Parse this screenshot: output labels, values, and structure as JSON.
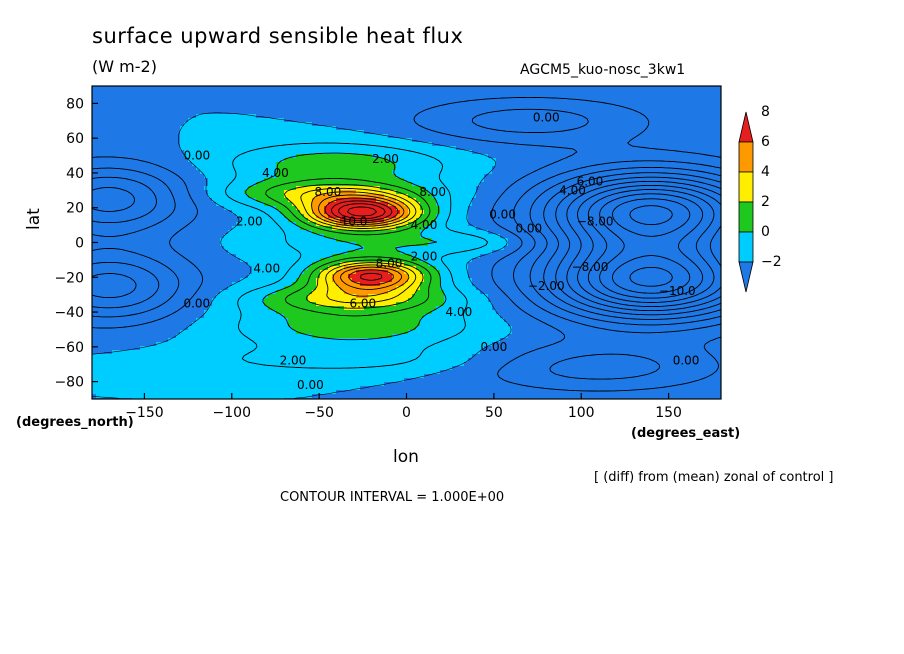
{
  "chart_data": {
    "type": "heatmap",
    "title": "surface upward sensible heat flux",
    "units": "(W m-2)",
    "run_label": "AGCM5_kuo-nosc_3kw1",
    "xlabel": "lon",
    "ylabel": "lat",
    "x_units_note": "(degrees_east)",
    "y_units_note": "(degrees_north)",
    "subtitle_note": "[ (diff) from (mean) zonal of control ]",
    "contour_interval_text": "CONTOUR INTERVAL = 1.000E+00",
    "xlim": [
      -180,
      180
    ],
    "ylim": [
      -90,
      90
    ],
    "x_ticks": [
      -150,
      -100,
      -50,
      0,
      50,
      100,
      150
    ],
    "y_ticks": [
      80,
      60,
      40,
      20,
      0,
      -20,
      -40,
      -60,
      -80
    ],
    "x_tick_labels": [
      "−150",
      "−100",
      "−50",
      "0",
      "50",
      "100",
      "150"
    ],
    "y_tick_labels": [
      "80",
      "60",
      "40",
      "20",
      "0",
      "−20",
      "−40",
      "−60",
      "−80"
    ],
    "colorbar": {
      "levels": [
        -2,
        0,
        2,
        4,
        6,
        8
      ],
      "level_labels": [
        "−2",
        "0",
        "2",
        "4",
        "6",
        "8"
      ],
      "colors": [
        "#1e78e6",
        "#00cdff",
        "#1ec81e",
        "#ffee00",
        "#ff9900",
        "#e61e1e"
      ]
    },
    "contour_labels": [
      {
        "text": "0.00",
        "x": 80,
        "y": 72
      },
      {
        "text": "0.00",
        "x": -120,
        "y": 50
      },
      {
        "text": "4.00",
        "x": -75,
        "y": 40
      },
      {
        "text": "2.00",
        "x": -12,
        "y": 48
      },
      {
        "text": "8.00",
        "x": -45,
        "y": 29
      },
      {
        "text": "8.00",
        "x": 15,
        "y": 29
      },
      {
        "text": "10.0",
        "x": -30,
        "y": 12
      },
      {
        "text": "4.00",
        "x": 10,
        "y": 10
      },
      {
        "text": "2.00",
        "x": -90,
        "y": 12
      },
      {
        "text": "4.00",
        "x": 95,
        "y": 30
      },
      {
        "text": "6.00",
        "x": 105,
        "y": 35
      },
      {
        "text": "0.00",
        "x": 55,
        "y": 16
      },
      {
        "text": "0.00",
        "x": 70,
        "y": 8
      },
      {
        "text": "−8.00",
        "x": 108,
        "y": 12
      },
      {
        "text": "2.00",
        "x": 10,
        "y": -8
      },
      {
        "text": "4.00",
        "x": -80,
        "y": -15
      },
      {
        "text": "8.00",
        "x": -10,
        "y": -12
      },
      {
        "text": "6.00",
        "x": -25,
        "y": -35
      },
      {
        "text": "4.00",
        "x": 30,
        "y": -40
      },
      {
        "text": "−2.00",
        "x": 80,
        "y": -25
      },
      {
        "text": "−8.00",
        "x": 105,
        "y": -14
      },
      {
        "text": "−10.0",
        "x": 155,
        "y": -28
      },
      {
        "text": "0.00",
        "x": 50,
        "y": -60
      },
      {
        "text": "2.00",
        "x": -65,
        "y": -68
      },
      {
        "text": "0.00",
        "x": -55,
        "y": -82
      },
      {
        "text": "0.00",
        "x": 160,
        "y": -68
      },
      {
        "text": "0.00",
        "x": -120,
        "y": -35
      }
    ]
  }
}
